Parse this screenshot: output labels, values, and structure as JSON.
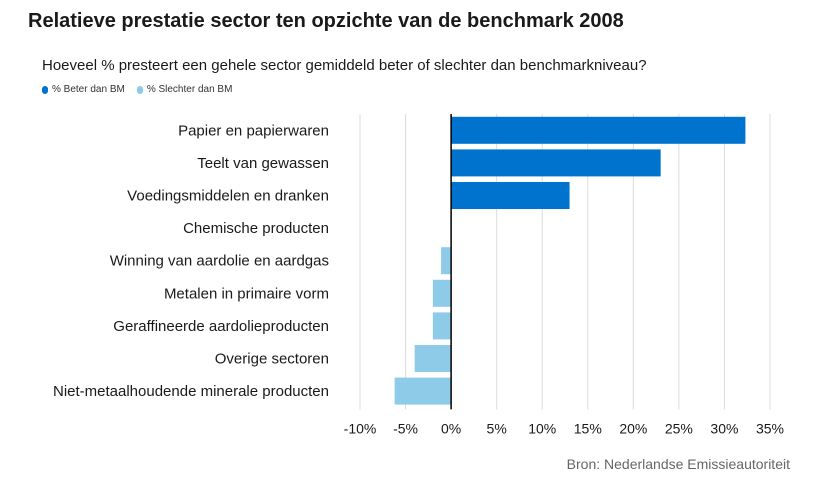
{
  "title": "Relatieve prestatie sector ten opzichte van de benchmark 2008",
  "subtitle": "Hoeveel % presteert een gehele sector gemiddeld beter of slechter dan benchmarkniveau?",
  "source": "Bron:  Nederlandse Emissieautoriteit",
  "colors": {
    "better": "#0073cf",
    "worse": "#8ecbe9",
    "grid": "#dcdcdc",
    "axis": "#000000"
  },
  "chart_data": {
    "type": "bar",
    "orientation": "horizontal",
    "title": "Relatieve prestatie sector ten opzichte van de benchmark 2008",
    "subtitle": "Hoeveel % presteert een gehele sector gemiddeld beter of slechter dan benchmarkniveau?",
    "categories": [
      "Papier en papierwaren",
      "Teelt van gewassen",
      "Voedingsmiddelen en dranken",
      "Chemische producten",
      "Winning van aardolie en aardgas",
      "Metalen in primaire vorm",
      "Geraffineerde aardolieproducten",
      "Overige sectoren",
      "Niet-metaalhoudende minerale producten"
    ],
    "series": [
      {
        "name": "% Beter dan BM",
        "values": [
          32.3,
          23.0,
          13.0,
          0,
          null,
          null,
          null,
          null,
          null
        ]
      },
      {
        "name": "% Slechter dan BM",
        "values": [
          null,
          null,
          null,
          null,
          -1.1,
          -2.0,
          -2.0,
          -4.0,
          -6.2
        ]
      }
    ],
    "xlim": [
      -10,
      35
    ],
    "xticks": [
      -10,
      -5,
      0,
      5,
      10,
      15,
      20,
      25,
      30,
      35
    ],
    "xtick_labels": [
      "-10%",
      "-5%",
      "0%",
      "5%",
      "10%",
      "15%",
      "20%",
      "25%",
      "30%",
      "35%"
    ],
    "grid": true,
    "legend": "top-left"
  }
}
